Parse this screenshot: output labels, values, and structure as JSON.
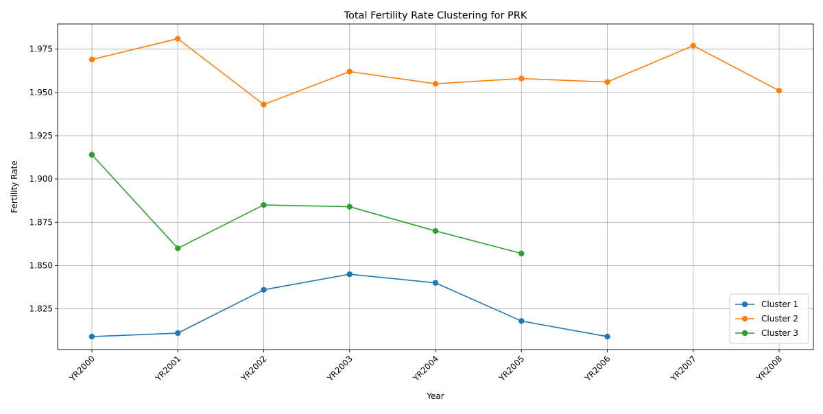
{
  "chart_data": {
    "type": "line",
    "title": "Total Fertility Rate Clustering for PRK",
    "xlabel": "Year",
    "ylabel": "Fertility Rate",
    "categories": [
      "YR2000",
      "YR2001",
      "YR2002",
      "YR2003",
      "YR2004",
      "YR2005",
      "YR2006",
      "YR2007",
      "YR2008"
    ],
    "yticks": [
      1.825,
      1.85,
      1.875,
      1.9,
      1.925,
      1.95,
      1.975
    ],
    "ytick_labels": [
      "1.825",
      "1.850",
      "1.875",
      "1.900",
      "1.925",
      "1.950",
      "1.975"
    ],
    "ylim": [
      1.8015,
      1.9895
    ],
    "grid": true,
    "legend_position": "lower-right",
    "x_tick_rotation": 45,
    "series": [
      {
        "name": "Cluster 1",
        "color": "#1f77b4",
        "x": [
          "YR2000",
          "YR2001",
          "YR2002",
          "YR2003",
          "YR2004",
          "YR2005",
          "YR2006"
        ],
        "values": [
          1.809,
          1.811,
          1.836,
          1.845,
          1.84,
          1.818,
          1.809
        ]
      },
      {
        "name": "Cluster 2",
        "color": "#ff7f0e",
        "x": [
          "YR2000",
          "YR2001",
          "YR2002",
          "YR2003",
          "YR2004",
          "YR2005",
          "YR2006",
          "YR2007",
          "YR2008"
        ],
        "values": [
          1.969,
          1.981,
          1.943,
          1.962,
          1.955,
          1.958,
          1.956,
          1.977,
          1.951
        ]
      },
      {
        "name": "Cluster 3",
        "color": "#2ca02c",
        "x": [
          "YR2000",
          "YR2001",
          "YR2002",
          "YR2003",
          "YR2004",
          "YR2005"
        ],
        "values": [
          1.914,
          1.86,
          1.885,
          1.884,
          1.87,
          1.857
        ]
      }
    ]
  }
}
